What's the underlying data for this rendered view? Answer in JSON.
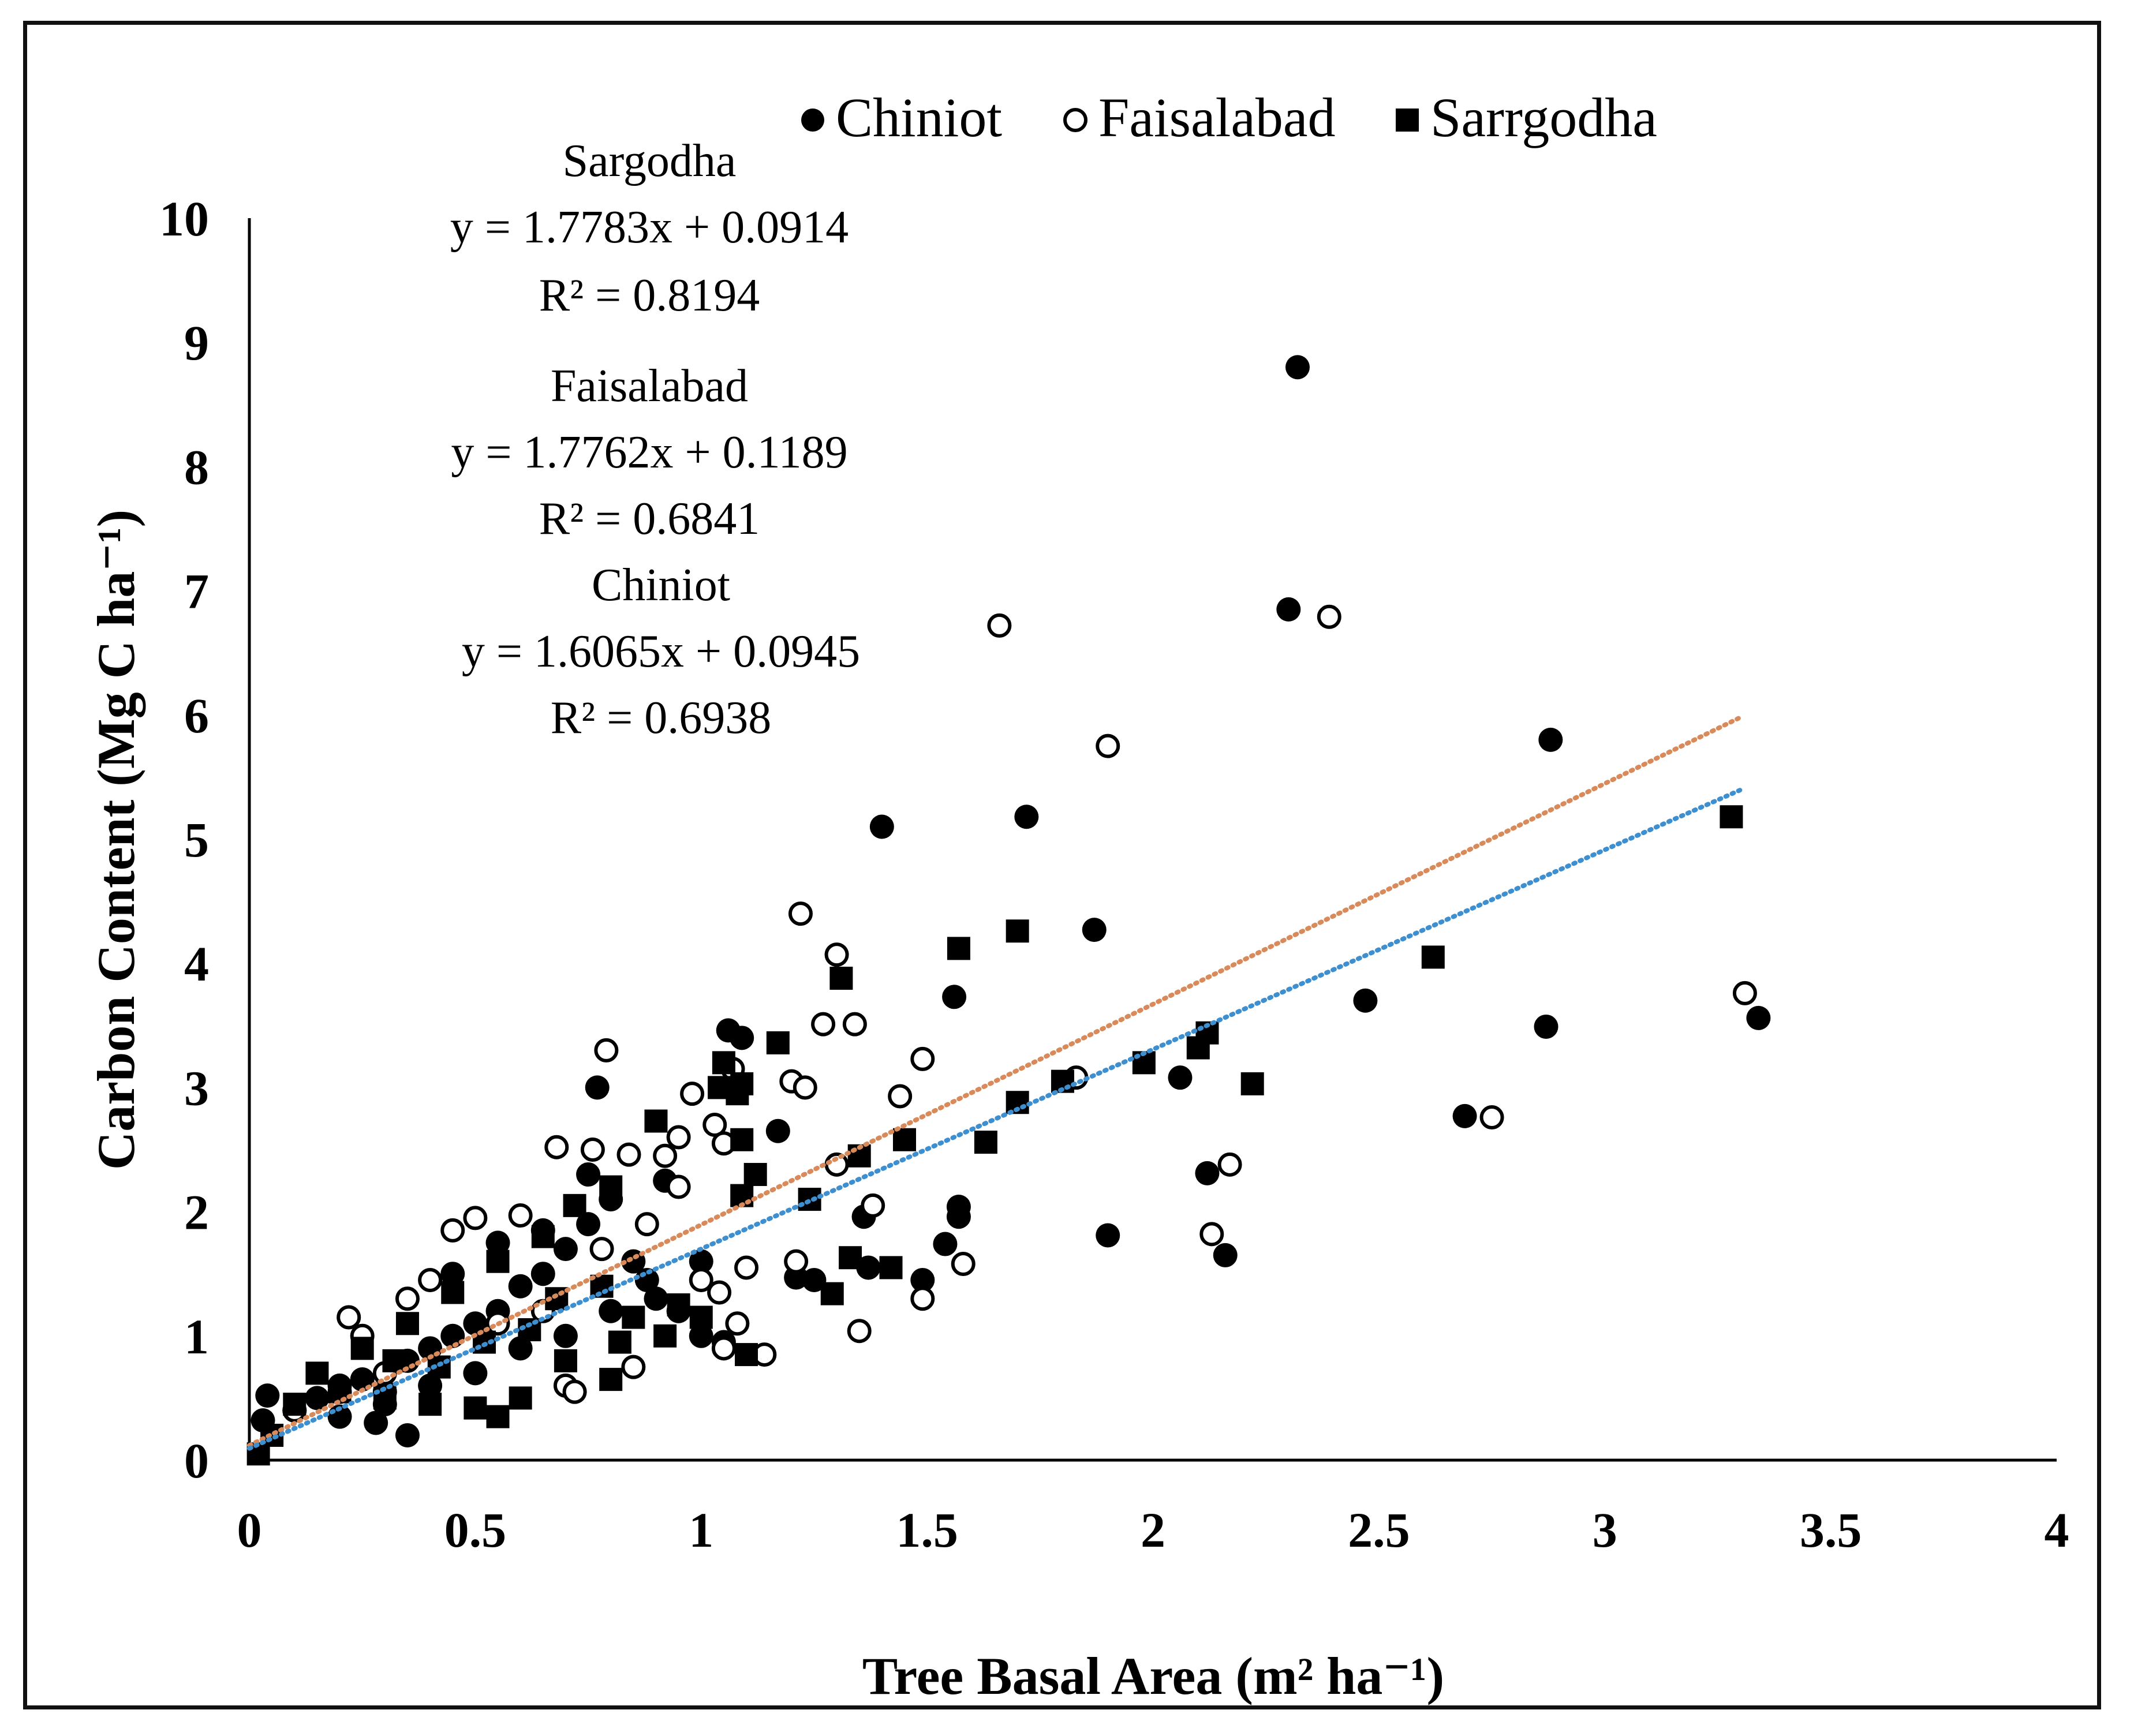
{
  "chart_data": {
    "type": "scatter",
    "title": "",
    "xlabel": "Tree Basal Area (m² ha⁻¹)",
    "ylabel": "Carbon Content (Mg C ha⁻¹)",
    "xlim": [
      0,
      4
    ],
    "ylim": [
      0,
      10
    ],
    "x_ticks": [
      "0",
      "0.5",
      "1",
      "1.5",
      "2",
      "2.5",
      "3",
      "3.5",
      "4"
    ],
    "y_ticks": [
      "0",
      "1",
      "2",
      "3",
      "4",
      "5",
      "6",
      "7",
      "8",
      "9",
      "10"
    ],
    "grid": false,
    "legend_position": "top",
    "legend": [
      {
        "name": "Chiniot",
        "marker": "filled-circle"
      },
      {
        "name": "Faisalabad",
        "marker": "open-circle"
      },
      {
        "name": "Sarrgodha",
        "marker": "filled-square"
      }
    ],
    "annotations": [
      {
        "site": "Sargodha",
        "equation": "y = 1.7783x + 0.0914",
        "r2": "R² = 0.8194"
      },
      {
        "site": "Faisalabad",
        "equation": "y = 1.7762x + 0.1189",
        "r2": "R² = 0.6841"
      },
      {
        "site": "Chiniot",
        "equation": "y = 1.6065x + 0.0945",
        "r2": "R² = 0.6938"
      }
    ],
    "trendlines": [
      {
        "name": "orange-dotted",
        "color": "#D98A5B",
        "slope": 1.7762,
        "intercept": 0.1189,
        "x_range": [
          0,
          3.3
        ]
      },
      {
        "name": "blue-dotted",
        "color": "#3E8FD0",
        "slope": 1.6065,
        "intercept": 0.0945,
        "x_range": [
          0,
          3.3
        ]
      }
    ],
    "series": [
      {
        "name": "Chiniot",
        "marker": "filled-circle",
        "points": [
          [
            2.32,
            8.8
          ],
          [
            2.3,
            6.85
          ],
          [
            2.88,
            5.8
          ],
          [
            1.4,
            5.1
          ],
          [
            1.72,
            5.18
          ],
          [
            1.87,
            4.27
          ],
          [
            1.56,
            3.73
          ],
          [
            2.47,
            3.7
          ],
          [
            2.87,
            3.49
          ],
          [
            3.34,
            3.56
          ],
          [
            2.69,
            2.77
          ],
          [
            2.06,
            3.08
          ],
          [
            2.12,
            2.31
          ],
          [
            1.9,
            1.81
          ],
          [
            2.16,
            1.65
          ],
          [
            0.77,
            3.0
          ],
          [
            1.06,
            3.46
          ],
          [
            1.09,
            3.4
          ],
          [
            1.17,
            2.65
          ],
          [
            1.36,
            1.96
          ],
          [
            1.57,
            2.04
          ],
          [
            1.57,
            1.96
          ],
          [
            1.54,
            1.74
          ],
          [
            1.49,
            1.45
          ],
          [
            1.37,
            1.55
          ],
          [
            1.21,
            1.47
          ],
          [
            1.25,
            1.45
          ],
          [
            0.04,
            0.52
          ],
          [
            0.03,
            0.32
          ],
          [
            0.1,
            0.4
          ],
          [
            0.15,
            0.5
          ],
          [
            0.2,
            0.6
          ],
          [
            0.25,
            0.65
          ],
          [
            0.3,
            0.55
          ],
          [
            0.35,
            0.8
          ],
          [
            0.4,
            0.9
          ],
          [
            0.45,
            1.0
          ],
          [
            0.5,
            1.1
          ],
          [
            0.55,
            1.2
          ],
          [
            0.6,
            1.4
          ],
          [
            0.65,
            1.5
          ],
          [
            0.7,
            1.7
          ],
          [
            0.75,
            1.9
          ],
          [
            0.8,
            2.1
          ],
          [
            0.85,
            1.6
          ],
          [
            0.9,
            1.3
          ],
          [
            0.95,
            1.2
          ],
          [
            1.0,
            1.0
          ],
          [
            1.05,
            0.95
          ],
          [
            0.6,
            0.9
          ],
          [
            0.5,
            0.7
          ],
          [
            0.4,
            0.6
          ],
          [
            0.3,
            0.45
          ],
          [
            0.2,
            0.35
          ],
          [
            0.45,
            1.5
          ],
          [
            0.55,
            1.75
          ],
          [
            0.65,
            1.85
          ],
          [
            0.75,
            2.3
          ],
          [
            0.92,
            2.25
          ],
          [
            0.35,
            0.2
          ],
          [
            0.28,
            0.3
          ],
          [
            0.7,
            1.0
          ],
          [
            0.8,
            1.2
          ],
          [
            0.88,
            1.45
          ],
          [
            1.0,
            1.6
          ]
        ]
      },
      {
        "name": "Faisalabad",
        "marker": "open-circle",
        "points": [
          [
            1.66,
            6.72
          ],
          [
            2.39,
            6.79
          ],
          [
            1.9,
            5.75
          ],
          [
            1.22,
            4.4
          ],
          [
            1.3,
            4.07
          ],
          [
            1.27,
            3.51
          ],
          [
            1.34,
            3.51
          ],
          [
            1.49,
            3.23
          ],
          [
            1.44,
            2.93
          ],
          [
            0.79,
            3.3
          ],
          [
            1.83,
            3.08
          ],
          [
            3.31,
            3.76
          ],
          [
            2.75,
            2.76
          ],
          [
            2.17,
            2.38
          ],
          [
            2.13,
            1.82
          ],
          [
            1.58,
            1.58
          ],
          [
            1.49,
            1.3
          ],
          [
            1.35,
            1.04
          ],
          [
            1.14,
            0.85
          ],
          [
            1.21,
            1.6
          ],
          [
            1.3,
            2.38
          ],
          [
            1.38,
            2.05
          ],
          [
            1.2,
            3.05
          ],
          [
            1.23,
            3.0
          ],
          [
            1.07,
            3.15
          ],
          [
            0.98,
            2.95
          ],
          [
            0.95,
            2.6
          ],
          [
            0.92,
            2.45
          ],
          [
            0.68,
            2.52
          ],
          [
            0.76,
            2.5
          ],
          [
            0.84,
            2.46
          ],
          [
            0.95,
            2.2
          ],
          [
            0.5,
            1.95
          ],
          [
            0.45,
            1.85
          ],
          [
            0.6,
            1.97
          ],
          [
            0.22,
            1.15
          ],
          [
            0.25,
            1.0
          ],
          [
            0.35,
            1.3
          ],
          [
            0.4,
            1.45
          ],
          [
            0.1,
            0.4
          ],
          [
            0.2,
            0.55
          ],
          [
            0.3,
            0.7
          ],
          [
            0.55,
            1.1
          ],
          [
            0.65,
            1.2
          ],
          [
            0.7,
            0.6
          ],
          [
            0.72,
            0.55
          ],
          [
            0.85,
            0.75
          ],
          [
            1.0,
            1.45
          ],
          [
            1.04,
            1.35
          ],
          [
            1.08,
            1.1
          ],
          [
            1.05,
            0.9
          ],
          [
            1.1,
            1.55
          ],
          [
            1.03,
            2.7
          ],
          [
            1.05,
            2.55
          ],
          [
            0.88,
            1.9
          ],
          [
            0.78,
            1.7
          ]
        ]
      },
      {
        "name": "Sarrgodha",
        "marker": "filled-square",
        "points": [
          [
            3.28,
            5.18
          ],
          [
            2.62,
            4.05
          ],
          [
            1.7,
            4.26
          ],
          [
            1.57,
            4.12
          ],
          [
            1.31,
            3.88
          ],
          [
            2.12,
            3.44
          ],
          [
            2.1,
            3.32
          ],
          [
            1.98,
            3.2
          ],
          [
            1.8,
            3.05
          ],
          [
            2.22,
            3.03
          ],
          [
            1.7,
            2.88
          ],
          [
            1.63,
            2.56
          ],
          [
            1.45,
            2.58
          ],
          [
            1.35,
            2.45
          ],
          [
            1.17,
            3.36
          ],
          [
            1.08,
            2.95
          ],
          [
            1.09,
            3.03
          ],
          [
            1.05,
            3.2
          ],
          [
            1.04,
            3.0
          ],
          [
            0.9,
            2.73
          ],
          [
            1.09,
            2.58
          ],
          [
            1.12,
            2.3
          ],
          [
            1.09,
            2.13
          ],
          [
            1.24,
            2.1
          ],
          [
            1.33,
            1.63
          ],
          [
            1.42,
            1.55
          ],
          [
            1.29,
            1.34
          ],
          [
            1.1,
            0.85
          ],
          [
            0.8,
            0.65
          ],
          [
            0.6,
            0.5
          ],
          [
            0.5,
            0.42
          ],
          [
            0.55,
            0.35
          ],
          [
            0.4,
            0.45
          ],
          [
            0.3,
            0.5
          ],
          [
            0.2,
            0.55
          ],
          [
            0.15,
            0.7
          ],
          [
            0.1,
            0.45
          ],
          [
            0.05,
            0.2
          ],
          [
            0.02,
            0.05
          ],
          [
            0.25,
            0.9
          ],
          [
            0.35,
            1.1
          ],
          [
            0.45,
            1.35
          ],
          [
            0.55,
            1.6
          ],
          [
            0.65,
            1.8
          ],
          [
            0.72,
            2.05
          ],
          [
            0.8,
            2.2
          ],
          [
            0.68,
            1.3
          ],
          [
            0.78,
            1.4
          ],
          [
            0.85,
            1.15
          ],
          [
            0.95,
            1.25
          ],
          [
            0.82,
            0.95
          ],
          [
            0.7,
            0.8
          ],
          [
            0.62,
            1.05
          ],
          [
            0.52,
            0.95
          ],
          [
            0.42,
            0.75
          ],
          [
            0.32,
            0.8
          ],
          [
            0.92,
            1.0
          ],
          [
            1.0,
            1.15
          ]
        ]
      }
    ]
  }
}
